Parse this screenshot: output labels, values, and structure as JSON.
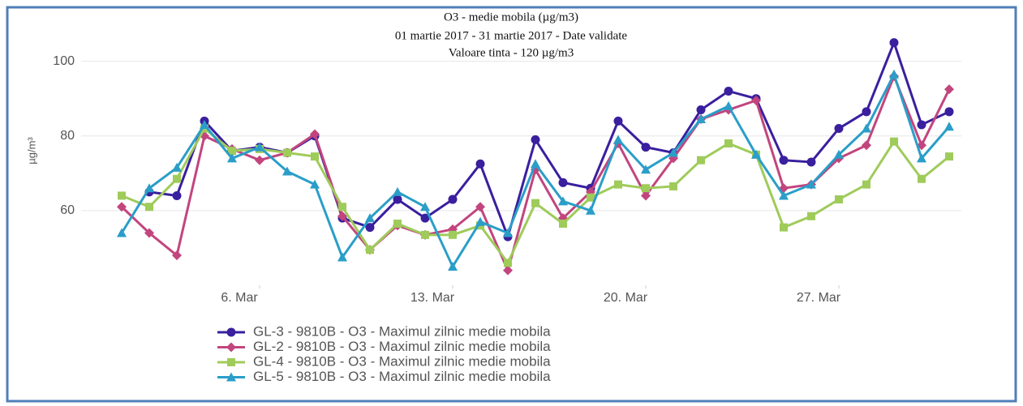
{
  "chart_data": {
    "type": "line",
    "title": "O3 - medie mobila (µg/m3)",
    "subtitle": "01 martie 2017 - 31 martie 2017 -  Date validate",
    "annotation": "Valoare tinta - 120 µg/m3",
    "y_label": "µg/m³",
    "x": [
      1,
      2,
      3,
      4,
      5,
      6,
      7,
      8,
      9,
      10,
      11,
      12,
      13,
      14,
      15,
      16,
      17,
      18,
      19,
      20,
      21,
      22,
      23,
      24,
      25,
      26,
      27,
      28,
      29,
      30,
      31
    ],
    "xlim": [
      1,
      31
    ],
    "xticks": [
      {
        "value": 6,
        "label": "6. Mar"
      },
      {
        "value": 13,
        "label": "13. Mar"
      },
      {
        "value": 20,
        "label": "20. Mar"
      },
      {
        "value": 27,
        "label": "27. Mar"
      }
    ],
    "ylim": [
      40,
      106
    ],
    "yticks": [
      60,
      80,
      100
    ],
    "grid": true,
    "legend": "bottom-left",
    "series": [
      {
        "name": "GL-3 - 9810B - O3 - Maximul zilnic medie mobila",
        "color": "#3a1f9e",
        "marker": "circle",
        "values": [
          null,
          65,
          64,
          84,
          76,
          77,
          75.5,
          80,
          58,
          55.5,
          63,
          58,
          63,
          72.5,
          53,
          79,
          67.5,
          66,
          84,
          77,
          75.5,
          87,
          92,
          90,
          73.5,
          73,
          82,
          86.5,
          105,
          83,
          86.5
        ]
      },
      {
        "name": "GL-2 - 9810B - O3 - Maximul zilnic medie mobila",
        "color": "#c2457e",
        "marker": "diamond",
        "values": [
          61,
          54,
          48,
          80,
          76.5,
          73.5,
          75.5,
          80.5,
          58.5,
          49.5,
          56,
          53.5,
          55,
          61,
          44,
          71,
          58,
          65,
          78,
          64,
          74,
          84.5,
          87,
          89.5,
          66,
          67,
          74,
          77.5,
          96,
          77.5,
          92.5
        ]
      },
      {
        "name": "GL-4 - 9810B - O3 - Maximul zilnic medie mobila",
        "color": "#9fcb5a",
        "marker": "square",
        "values": [
          64,
          61,
          68.5,
          82,
          76,
          76.5,
          75.5,
          74.5,
          61,
          49.5,
          56.5,
          53.5,
          53.5,
          56,
          46,
          62,
          56.5,
          63.5,
          67,
          66,
          66.5,
          73.5,
          78,
          75,
          55.5,
          58.5,
          63,
          67,
          78.5,
          68.5,
          74.5
        ]
      },
      {
        "name": "GL-5 - 9810B - O3 - Maximul zilnic medie mobila",
        "color": "#2a9ec8",
        "marker": "triangle",
        "values": [
          54,
          66,
          71.5,
          83,
          74,
          77,
          70.5,
          67,
          47.5,
          58,
          65,
          61,
          45,
          57,
          54,
          72.5,
          62.5,
          60,
          79,
          71,
          75.5,
          84.5,
          88,
          75,
          64,
          67,
          75,
          82,
          96.5,
          74,
          82.5
        ]
      }
    ]
  }
}
